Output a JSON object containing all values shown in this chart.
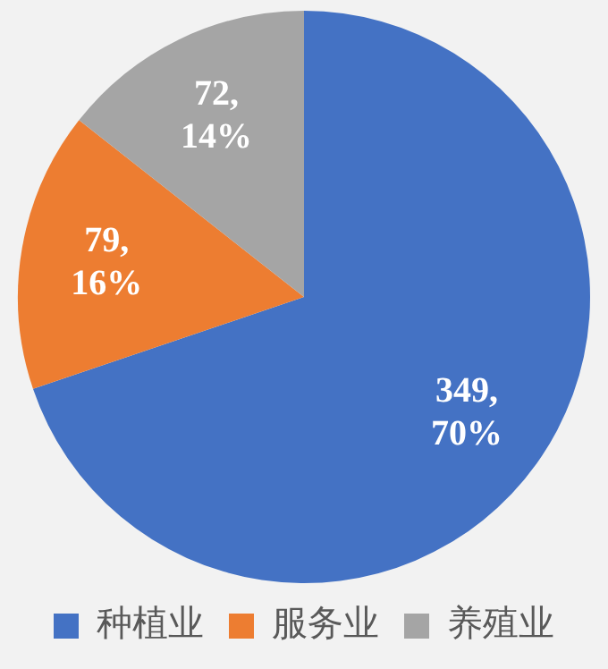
{
  "chart_data": {
    "type": "pie",
    "categories": [
      "种植业",
      "服务业",
      "养殖业"
    ],
    "values": [
      349,
      79,
      72
    ],
    "colors": [
      "#4472c4",
      "#ed7d31",
      "#a5a5a5"
    ],
    "value_labels": [
      "349,\n70%",
      "79,\n16%",
      "72,\n14%"
    ],
    "legend": "bottom"
  }
}
